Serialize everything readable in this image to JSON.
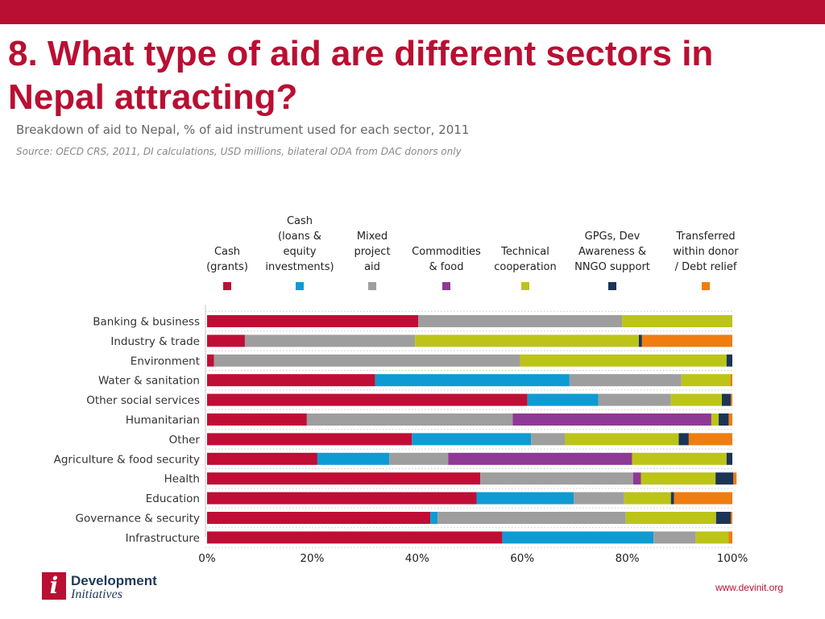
{
  "header": {
    "title": "8. What type of aid are different sectors in Nepal attracting?",
    "subtitle": "Breakdown of aid to Nepal, % of aid instrument used for each sector, 2011",
    "source": "Source: OECD CRS, 2011, DI calculations, USD millions, bilateral ODA from DAC donors only"
  },
  "footer": {
    "logo_line1": "Development",
    "logo_line2": "Initiatives",
    "logo_mark": "i",
    "website": "www.devinit.org"
  },
  "chart_data": {
    "type": "bar",
    "orientation": "horizontal",
    "stacked": true,
    "title": "",
    "xlabel": "",
    "ylabel": "",
    "xlim": [
      0,
      100
    ],
    "x_ticks": [
      "0%",
      "20%",
      "40%",
      "60%",
      "80%",
      "100%"
    ],
    "legend_position": "top",
    "grid": false,
    "categories": [
      "Banking & business",
      "Industry & trade",
      "Environment",
      "Water & sanitation",
      "Other social services",
      "Humanitarian",
      "Other",
      "Agriculture & food security",
      "Health",
      "Education",
      "Governance & security",
      "Infrastructure"
    ],
    "series": [
      {
        "name": "Cash (grants)",
        "legend_lines": [
          "Cash",
          "(grants)"
        ],
        "color": "#c00d36",
        "values": [
          40.2,
          7.2,
          1.3,
          32.0,
          61.0,
          19.0,
          39.0,
          21.0,
          52.0,
          51.3,
          42.5,
          56.2
        ]
      },
      {
        "name": "Cash (loans & equity investments)",
        "legend_lines": [
          "Cash",
          "(loans &",
          "equity",
          "investments)"
        ],
        "color": "#0e9bd3",
        "values": [
          0,
          0,
          0,
          37.0,
          13.5,
          0,
          22.7,
          13.7,
          0,
          18.5,
          1.4,
          28.8
        ]
      },
      {
        "name": "Mixed project aid",
        "legend_lines": [
          "Mixed",
          "project",
          "aid"
        ],
        "color": "#9e9e9e",
        "values": [
          38.8,
          32.4,
          58.3,
          21.3,
          13.8,
          39.2,
          6.4,
          11.2,
          29.1,
          9.6,
          35.8,
          8.0
        ]
      },
      {
        "name": "Commodities & food",
        "legend_lines": [
          "Commodities",
          "& food"
        ],
        "color": "#8e3a94",
        "values": [
          0,
          0,
          0,
          0,
          0,
          37.8,
          0,
          35.0,
          1.5,
          0,
          0,
          0
        ]
      },
      {
        "name": "Technical cooperation",
        "legend_lines": [
          "Technical",
          "cooperation"
        ],
        "color": "#bcc418",
        "values": [
          21.0,
          42.6,
          39.3,
          9.3,
          9.7,
          1.4,
          21.7,
          18.0,
          14.2,
          8.9,
          17.2,
          6.3
        ]
      },
      {
        "name": "GPGs, Dev Awareness & NNGO support",
        "legend_lines": [
          "GPGs, Dev",
          "Awareness &",
          "NNGO support"
        ],
        "color": "#1c3557",
        "values": [
          0,
          0.6,
          1.1,
          0,
          1.7,
          1.9,
          1.9,
          1.1,
          3.4,
          0.6,
          2.8,
          0
        ]
      },
      {
        "name": "Transferred within donor / Debt relief",
        "legend_lines": [
          "Transferred",
          "within donor",
          "/ Debt relief"
        ],
        "color": "#ef7d0f",
        "values": [
          0,
          17.2,
          0,
          0.4,
          0.3,
          0.7,
          8.3,
          0,
          0.6,
          11.1,
          0.3,
          0.7
        ]
      }
    ]
  }
}
